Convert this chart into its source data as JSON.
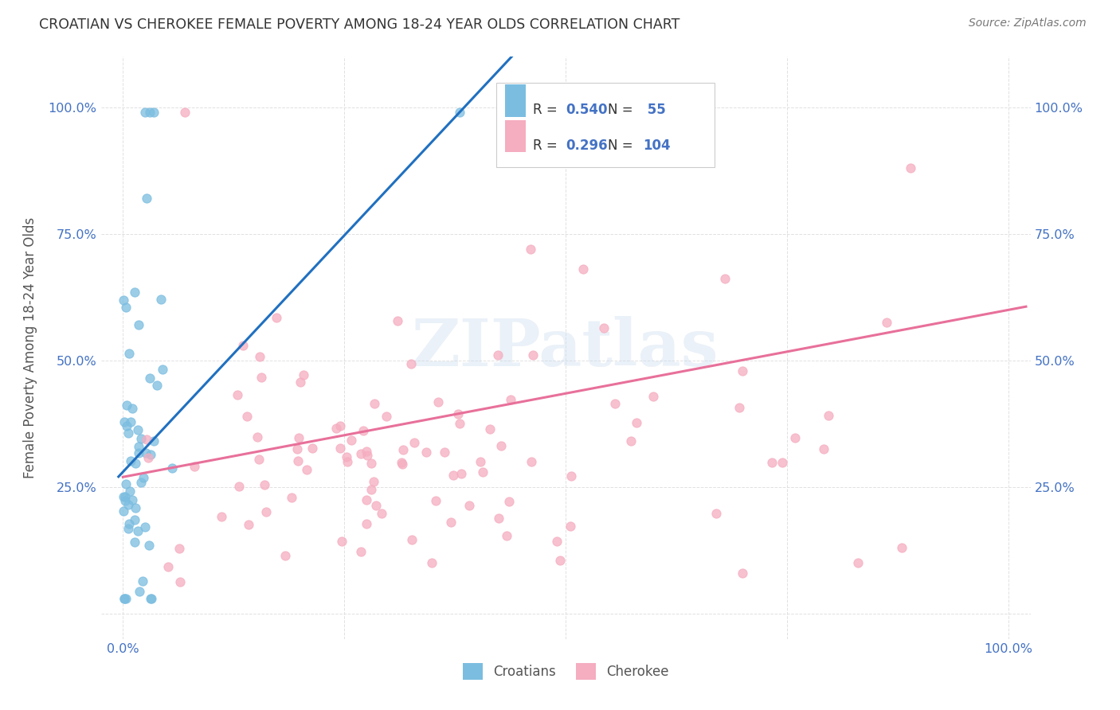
{
  "title": "CROATIAN VS CHEROKEE FEMALE POVERTY AMONG 18-24 YEAR OLDS CORRELATION CHART",
  "source": "Source: ZipAtlas.com",
  "ylabel": "Female Poverty Among 18-24 Year Olds",
  "watermark": "ZIPatlas",
  "croatian_R": 0.54,
  "croatian_N": 55,
  "cherokee_R": 0.296,
  "cherokee_N": 104,
  "croatian_color": "#7bbde0",
  "cherokee_color": "#f5adc0",
  "croatian_line_color": "#2070c0",
  "cherokee_line_color": "#e8709a",
  "background_color": "#ffffff",
  "grid_color": "#dddddd",
  "title_color": "#333333",
  "axis_color": "#4472c4",
  "source_color": "#777777",
  "ylabel_color": "#555555"
}
